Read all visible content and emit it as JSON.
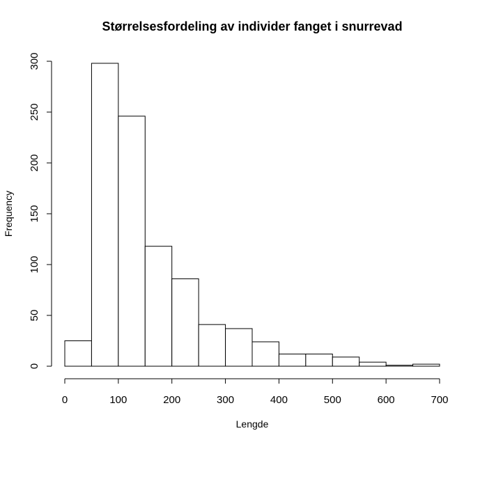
{
  "chart_data": {
    "type": "bar",
    "title": "Størrelsesfordeling av individer fanget i snurrevad",
    "xlabel": "Lengde",
    "ylabel": "Frequency",
    "bins": [
      {
        "x0": 0,
        "x1": 50,
        "count": 25
      },
      {
        "x0": 50,
        "x1": 100,
        "count": 298
      },
      {
        "x0": 100,
        "x1": 150,
        "count": 246
      },
      {
        "x0": 150,
        "x1": 200,
        "count": 118
      },
      {
        "x0": 200,
        "x1": 250,
        "count": 86
      },
      {
        "x0": 250,
        "x1": 300,
        "count": 41
      },
      {
        "x0": 300,
        "x1": 350,
        "count": 37
      },
      {
        "x0": 350,
        "x1": 400,
        "count": 24
      },
      {
        "x0": 400,
        "x1": 450,
        "count": 12
      },
      {
        "x0": 450,
        "x1": 500,
        "count": 12
      },
      {
        "x0": 500,
        "x1": 550,
        "count": 9
      },
      {
        "x0": 550,
        "x1": 600,
        "count": 4
      },
      {
        "x0": 600,
        "x1": 650,
        "count": 1
      },
      {
        "x0": 650,
        "x1": 700,
        "count": 2
      }
    ],
    "xlim": [
      0,
      700
    ],
    "ylim": [
      0,
      300
    ],
    "xticks": [
      0,
      100,
      200,
      300,
      400,
      500,
      600,
      700
    ],
    "yticks": [
      0,
      50,
      100,
      150,
      200,
      250,
      300
    ],
    "grid": false,
    "legend": "none"
  }
}
